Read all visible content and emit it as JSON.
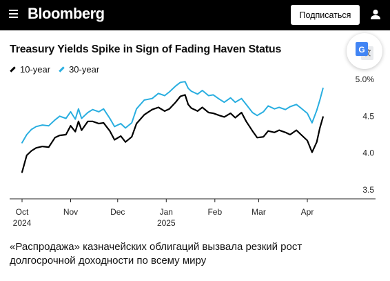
{
  "header": {
    "logo": "Bloomberg",
    "subscribe_label": "Подписаться"
  },
  "colors": {
    "topbar_bg": "#000000",
    "series_10y": "#000000",
    "series_30y": "#29aee0"
  },
  "icons": {
    "menu": "menu-icon",
    "user": "user-icon",
    "translate": "google-translate-icon"
  },
  "caption": "«Распродажа» казначейских облигаций вызвала резкий рост долгосрочной доходности по всему миру",
  "chart_data": {
    "type": "line",
    "title": "Treasury Yields Spike in Sign of Fading Haven Status",
    "y_unit": "%",
    "ylim": [
      3.5,
      5.0
    ],
    "yticks": [
      "5.0%",
      "4.5",
      "4.0",
      "3.5"
    ],
    "ytick_values": [
      5.0,
      4.5,
      4.0,
      3.5
    ],
    "x_range": [
      "2024-10-01",
      "2025-04-30"
    ],
    "xticks": [
      {
        "label": "Oct",
        "sublabel": "2024",
        "date": "2024-10-01"
      },
      {
        "label": "Nov",
        "sublabel": "",
        "date": "2024-11-01"
      },
      {
        "label": "Dec",
        "sublabel": "",
        "date": "2024-12-01"
      },
      {
        "label": "Jan",
        "sublabel": "2025",
        "date": "2025-01-01"
      },
      {
        "label": "Feb",
        "sublabel": "",
        "date": "2025-02-01"
      },
      {
        "label": "Mar",
        "sublabel": "",
        "date": "2025-03-01"
      },
      {
        "label": "Apr",
        "sublabel": "",
        "date": "2025-04-01"
      }
    ],
    "grid": false,
    "legend_position": "top-left",
    "series": [
      {
        "name": "10-year",
        "color": "#000000",
        "points": [
          [
            "2024-10-01",
            3.74
          ],
          [
            "2024-10-04",
            3.97
          ],
          [
            "2024-10-07",
            4.03
          ],
          [
            "2024-10-10",
            4.07
          ],
          [
            "2024-10-14",
            4.09
          ],
          [
            "2024-10-18",
            4.08
          ],
          [
            "2024-10-22",
            4.21
          ],
          [
            "2024-10-25",
            4.24
          ],
          [
            "2024-10-29",
            4.25
          ],
          [
            "2024-11-01",
            4.37
          ],
          [
            "2024-11-04",
            4.29
          ],
          [
            "2024-11-06",
            4.43
          ],
          [
            "2024-11-08",
            4.31
          ],
          [
            "2024-11-12",
            4.43
          ],
          [
            "2024-11-15",
            4.43
          ],
          [
            "2024-11-19",
            4.4
          ],
          [
            "2024-11-22",
            4.41
          ],
          [
            "2024-11-26",
            4.3
          ],
          [
            "2024-11-29",
            4.18
          ],
          [
            "2024-12-03",
            4.23
          ],
          [
            "2024-12-06",
            4.15
          ],
          [
            "2024-12-10",
            4.22
          ],
          [
            "2024-12-13",
            4.4
          ],
          [
            "2024-12-18",
            4.52
          ],
          [
            "2024-12-23",
            4.59
          ],
          [
            "2024-12-27",
            4.62
          ],
          [
            "2024-12-31",
            4.57
          ],
          [
            "2025-01-03",
            4.6
          ],
          [
            "2025-01-07",
            4.69
          ],
          [
            "2025-01-10",
            4.77
          ],
          [
            "2025-01-13",
            4.79
          ],
          [
            "2025-01-15",
            4.66
          ],
          [
            "2025-01-17",
            4.61
          ],
          [
            "2025-01-21",
            4.57
          ],
          [
            "2025-01-24",
            4.62
          ],
          [
            "2025-01-28",
            4.55
          ],
          [
            "2025-01-31",
            4.54
          ],
          [
            "2025-02-04",
            4.51
          ],
          [
            "2025-02-07",
            4.49
          ],
          [
            "2025-02-11",
            4.54
          ],
          [
            "2025-02-14",
            4.48
          ],
          [
            "2025-02-18",
            4.55
          ],
          [
            "2025-02-21",
            4.43
          ],
          [
            "2025-02-25",
            4.3
          ],
          [
            "2025-02-28",
            4.21
          ],
          [
            "2025-03-04",
            4.22
          ],
          [
            "2025-03-07",
            4.3
          ],
          [
            "2025-03-11",
            4.28
          ],
          [
            "2025-03-14",
            4.31
          ],
          [
            "2025-03-18",
            4.28
          ],
          [
            "2025-03-21",
            4.25
          ],
          [
            "2025-03-25",
            4.31
          ],
          [
            "2025-03-28",
            4.25
          ],
          [
            "2025-04-01",
            4.17
          ],
          [
            "2025-04-04",
            4.01
          ],
          [
            "2025-04-07",
            4.15
          ],
          [
            "2025-04-09",
            4.34
          ],
          [
            "2025-04-11",
            4.49
          ]
        ]
      },
      {
        "name": "30-year",
        "color": "#29aee0",
        "points": [
          [
            "2024-10-01",
            4.14
          ],
          [
            "2024-10-04",
            4.25
          ],
          [
            "2024-10-07",
            4.32
          ],
          [
            "2024-10-10",
            4.36
          ],
          [
            "2024-10-14",
            4.38
          ],
          [
            "2024-10-18",
            4.37
          ],
          [
            "2024-10-22",
            4.45
          ],
          [
            "2024-10-25",
            4.5
          ],
          [
            "2024-10-29",
            4.47
          ],
          [
            "2024-11-01",
            4.56
          ],
          [
            "2024-11-04",
            4.46
          ],
          [
            "2024-11-06",
            4.6
          ],
          [
            "2024-11-08",
            4.47
          ],
          [
            "2024-11-12",
            4.55
          ],
          [
            "2024-11-15",
            4.59
          ],
          [
            "2024-11-19",
            4.56
          ],
          [
            "2024-11-22",
            4.6
          ],
          [
            "2024-11-26",
            4.47
          ],
          [
            "2024-11-29",
            4.36
          ],
          [
            "2024-12-03",
            4.4
          ],
          [
            "2024-12-06",
            4.34
          ],
          [
            "2024-12-10",
            4.41
          ],
          [
            "2024-12-13",
            4.6
          ],
          [
            "2024-12-18",
            4.72
          ],
          [
            "2024-12-23",
            4.74
          ],
          [
            "2024-12-27",
            4.81
          ],
          [
            "2024-12-31",
            4.78
          ],
          [
            "2025-01-03",
            4.83
          ],
          [
            "2025-01-07",
            4.91
          ],
          [
            "2025-01-10",
            4.96
          ],
          [
            "2025-01-13",
            4.97
          ],
          [
            "2025-01-15",
            4.88
          ],
          [
            "2025-01-17",
            4.84
          ],
          [
            "2025-01-21",
            4.8
          ],
          [
            "2025-01-24",
            4.85
          ],
          [
            "2025-01-28",
            4.78
          ],
          [
            "2025-01-31",
            4.79
          ],
          [
            "2025-02-04",
            4.73
          ],
          [
            "2025-02-07",
            4.69
          ],
          [
            "2025-02-11",
            4.75
          ],
          [
            "2025-02-14",
            4.69
          ],
          [
            "2025-02-18",
            4.74
          ],
          [
            "2025-02-21",
            4.66
          ],
          [
            "2025-02-25",
            4.55
          ],
          [
            "2025-02-28",
            4.51
          ],
          [
            "2025-03-04",
            4.56
          ],
          [
            "2025-03-07",
            4.64
          ],
          [
            "2025-03-11",
            4.6
          ],
          [
            "2025-03-14",
            4.62
          ],
          [
            "2025-03-18",
            4.59
          ],
          [
            "2025-03-21",
            4.63
          ],
          [
            "2025-03-25",
            4.66
          ],
          [
            "2025-03-28",
            4.61
          ],
          [
            "2025-04-01",
            4.54
          ],
          [
            "2025-04-04",
            4.41
          ],
          [
            "2025-04-07",
            4.58
          ],
          [
            "2025-04-09",
            4.72
          ],
          [
            "2025-04-11",
            4.88
          ]
        ]
      }
    ]
  }
}
